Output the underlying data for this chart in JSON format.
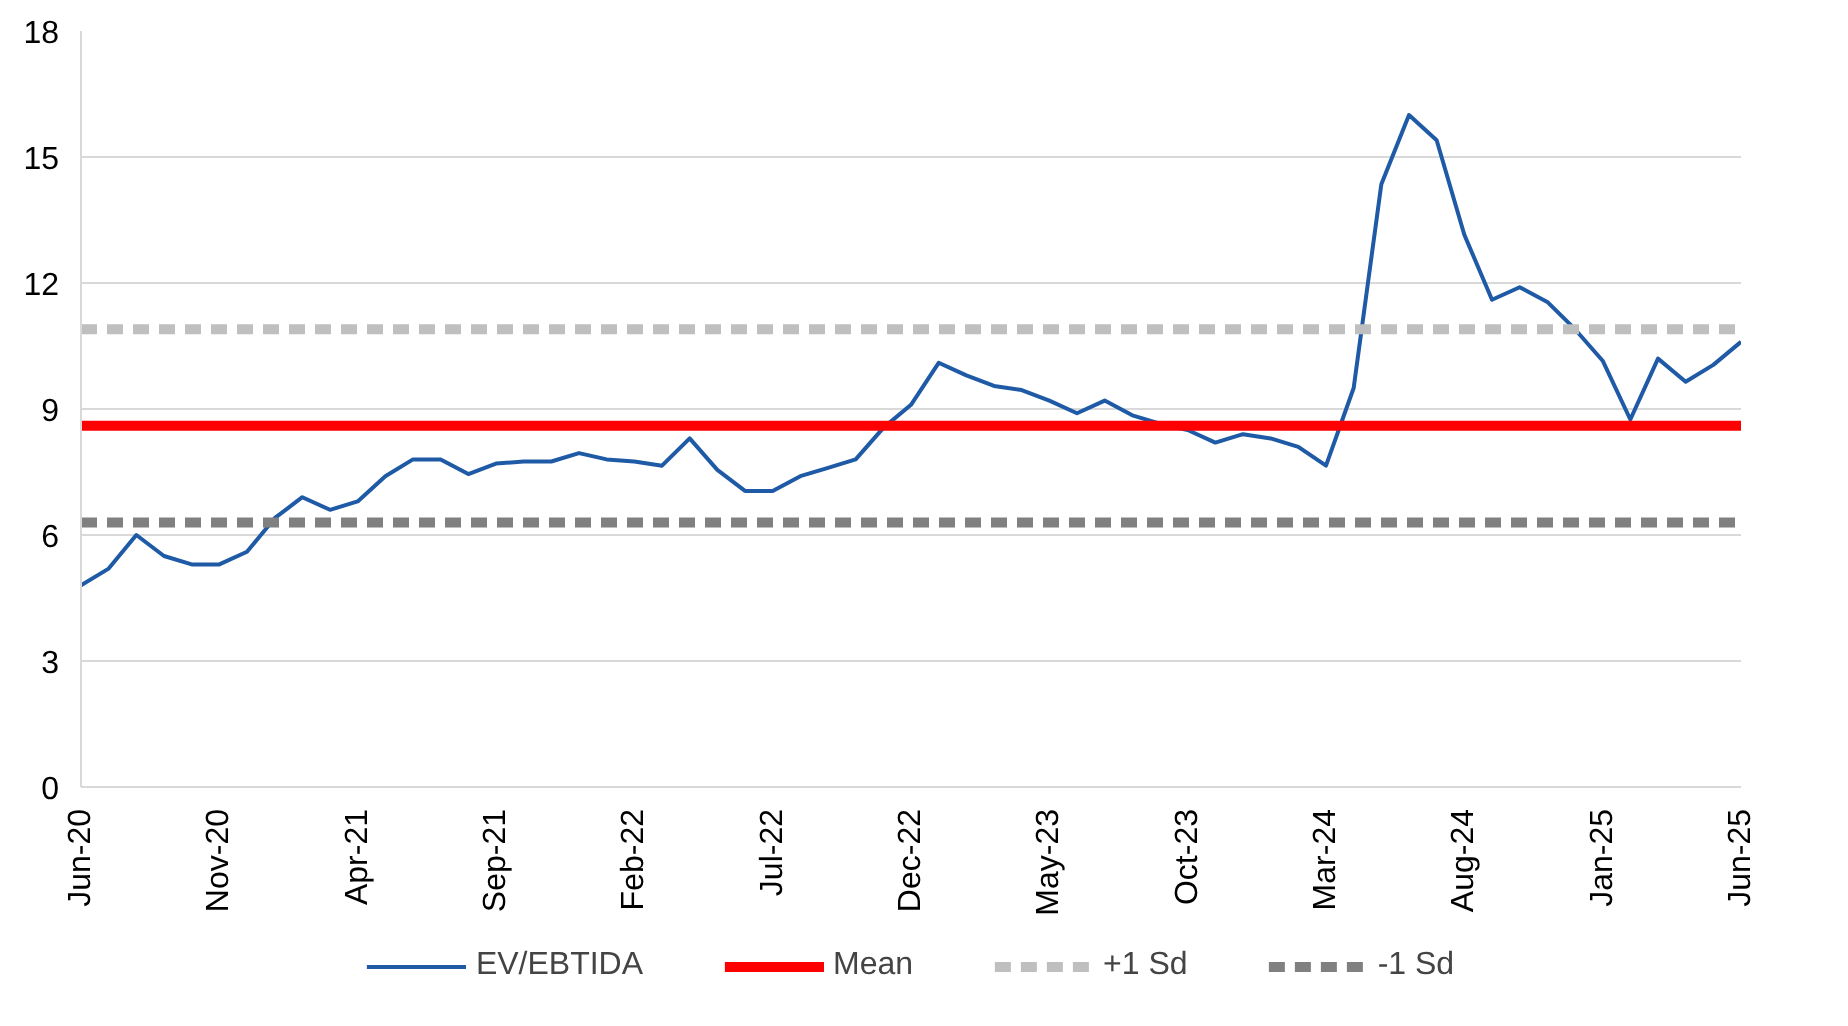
{
  "chart_data": {
    "type": "line",
    "x": [
      "2020-06",
      "2020-07",
      "2020-08",
      "2020-09",
      "2020-10",
      "2020-11",
      "2020-12",
      "2021-01",
      "2021-02",
      "2021-03",
      "2021-04",
      "2021-05",
      "2021-06",
      "2021-07",
      "2021-08",
      "2021-09",
      "2021-10",
      "2021-11",
      "2021-12",
      "2022-01",
      "2022-02",
      "2022-03",
      "2022-04",
      "2022-05",
      "2022-06",
      "2022-07",
      "2022-08",
      "2022-09",
      "2022-10",
      "2022-11",
      "2022-12",
      "2023-01",
      "2023-02",
      "2023-03",
      "2023-04",
      "2023-05",
      "2023-06",
      "2023-07",
      "2023-08",
      "2023-09",
      "2023-10",
      "2023-11",
      "2023-12",
      "2024-01",
      "2024-02",
      "2024-03",
      "2024-04",
      "2024-05",
      "2024-06",
      "2024-07",
      "2024-08",
      "2024-09",
      "2024-10",
      "2024-11",
      "2024-12",
      "2025-01",
      "2025-02",
      "2025-03",
      "2025-04",
      "2025-05",
      "2025-06"
    ],
    "series": [
      {
        "name": "EV/EBTIDA",
        "color": "#1f5aa6",
        "values": [
          4.8,
          5.2,
          6.0,
          5.5,
          5.3,
          5.3,
          5.6,
          6.4,
          6.9,
          6.6,
          6.8,
          7.4,
          7.8,
          7.8,
          7.45,
          7.7,
          7.75,
          7.75,
          7.95,
          7.8,
          7.75,
          7.65,
          8.3,
          7.55,
          7.05,
          7.05,
          7.4,
          7.6,
          7.8,
          8.55,
          9.1,
          10.1,
          9.8,
          9.55,
          9.45,
          9.2,
          8.9,
          9.2,
          8.85,
          8.65,
          8.5,
          8.2,
          8.4,
          8.3,
          8.1,
          7.65,
          9.5,
          14.35,
          16.0,
          15.4,
          13.15,
          11.6,
          11.9,
          11.55,
          10.9,
          10.15,
          8.75,
          10.2,
          9.65,
          10.05,
          10.6
        ]
      }
    ],
    "ref_lines": [
      {
        "axis": "y",
        "value": 8.6,
        "label": "Mean",
        "color": "#ff0000",
        "line_style": "solid"
      },
      {
        "axis": "y",
        "value": 10.9,
        "label": "+1 Sd",
        "color": "#bfbfbf",
        "line_style": "dashed"
      },
      {
        "axis": "y",
        "value": 6.3,
        "label": "-1 Sd",
        "color": "#808080",
        "line_style": "dashed"
      }
    ],
    "xlim": [
      "2020-06",
      "2025-06"
    ],
    "xticks": [
      {
        "value": "2020-06",
        "label": "Jun-20"
      },
      {
        "value": "2020-11",
        "label": "Nov-20"
      },
      {
        "value": "2021-04",
        "label": "Apr-21"
      },
      {
        "value": "2021-09",
        "label": "Sep-21"
      },
      {
        "value": "2022-02",
        "label": "Feb-22"
      },
      {
        "value": "2022-07",
        "label": "Jul-22"
      },
      {
        "value": "2022-12",
        "label": "Dec-22"
      },
      {
        "value": "2023-05",
        "label": "May-23"
      },
      {
        "value": "2023-10",
        "label": "Oct-23"
      },
      {
        "value": "2024-03",
        "label": "Mar-24"
      },
      {
        "value": "2024-08",
        "label": "Aug-24"
      },
      {
        "value": "2025-01",
        "label": "Jan-25"
      },
      {
        "value": "2025-06",
        "label": "Jun-25"
      }
    ],
    "ylim": [
      0,
      18
    ],
    "yticks": [
      0,
      3,
      6,
      9,
      12,
      15,
      18
    ],
    "grid": "y",
    "legend": "bottom",
    "marker": "none",
    "line_style": "solid"
  }
}
